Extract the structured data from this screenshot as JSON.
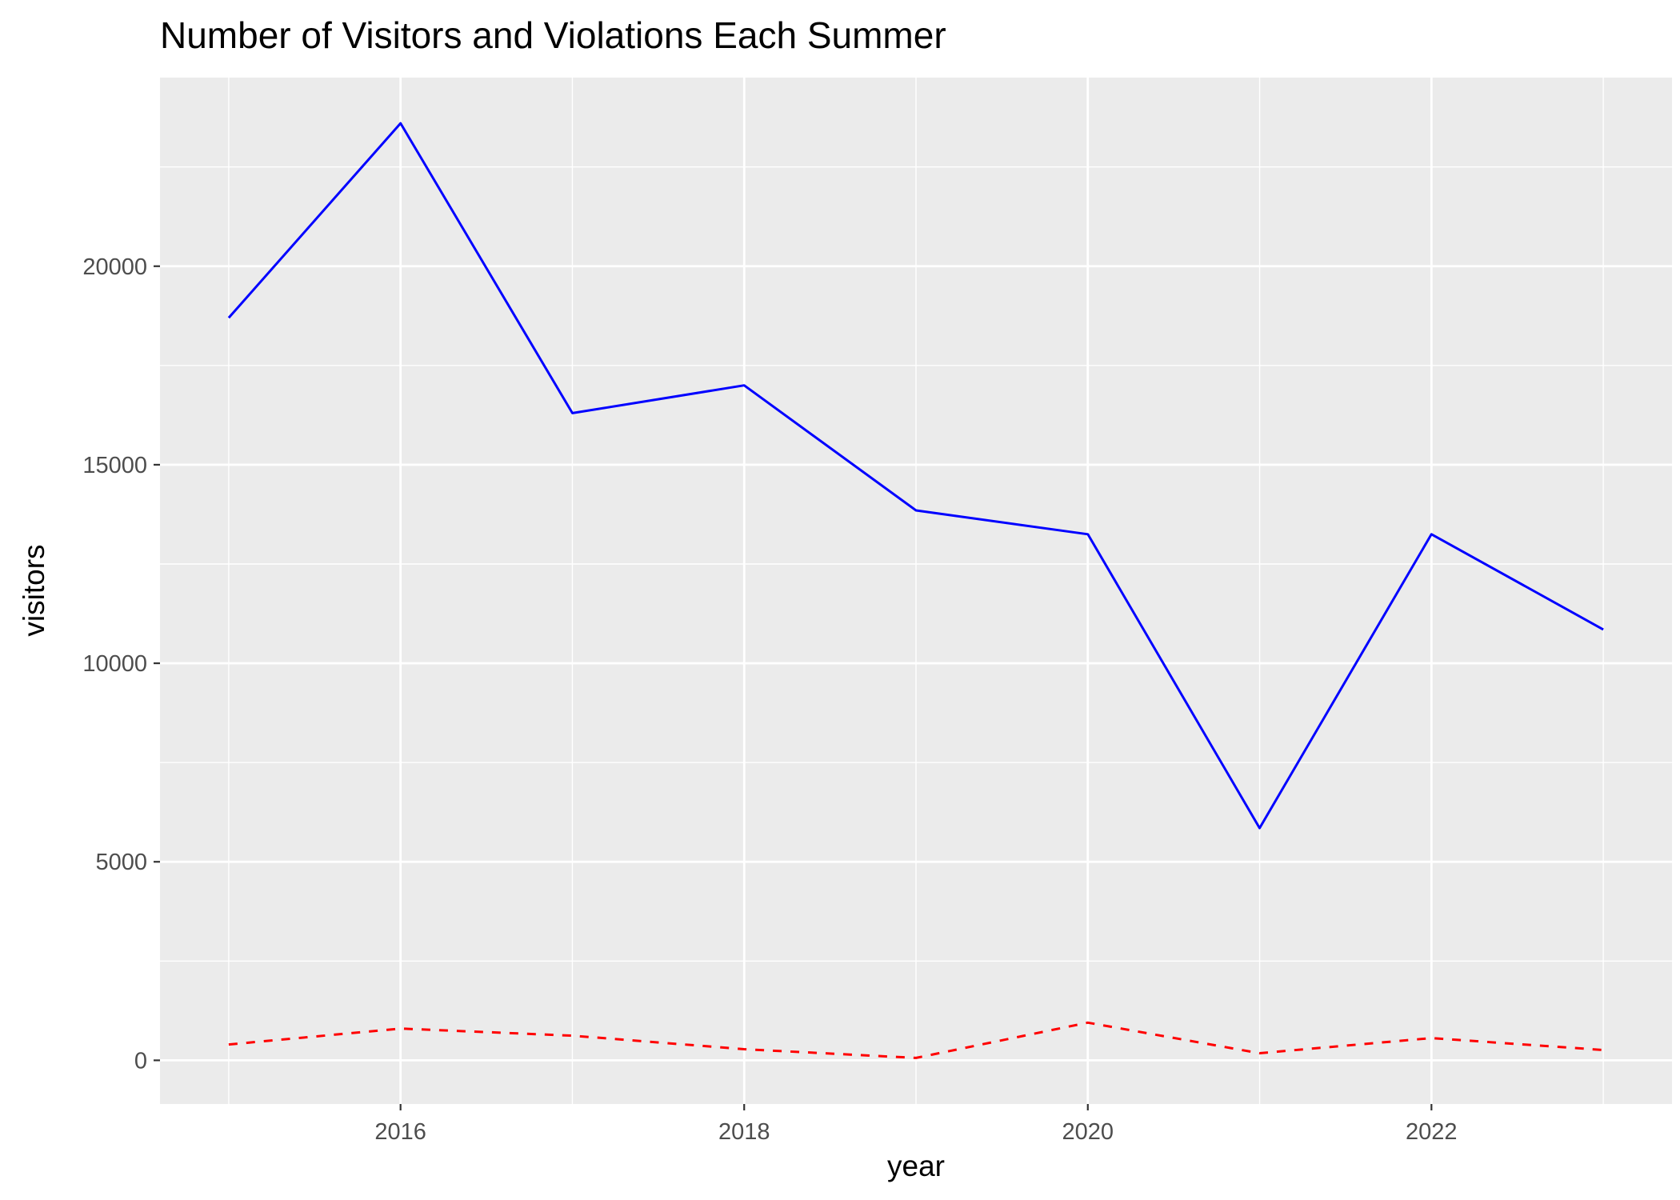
{
  "chart_data": {
    "type": "line",
    "title": "Number of Visitors and Violations Each Summer",
    "xlabel": "year",
    "ylabel": "visitors",
    "x": [
      2015,
      2016,
      2017,
      2018,
      2019,
      2020,
      2021,
      2022,
      2023
    ],
    "xlim": [
      2014.6,
      2023.4
    ],
    "ylim": [
      -1100,
      24750
    ],
    "x_ticks": [
      2016,
      2018,
      2020,
      2022
    ],
    "x_tick_labels": [
      "2016",
      "2018",
      "2020",
      "2022"
    ],
    "y_ticks": [
      0,
      5000,
      10000,
      15000,
      20000
    ],
    "y_tick_labels": [
      "0",
      "5000",
      "10000",
      "15000",
      "20000"
    ],
    "grid": true,
    "legend": "none",
    "background": "#ebebeb",
    "series": [
      {
        "key": "visitors",
        "color": "#0000ff",
        "line_style": "solid",
        "values": [
          18700,
          23600,
          16300,
          17000,
          13850,
          13250,
          5850,
          13250,
          10850
        ]
      },
      {
        "key": "violations",
        "color": "#ff0000",
        "line_style": "dashed",
        "values": [
          400,
          800,
          620,
          280,
          60,
          950,
          180,
          560,
          260
        ]
      }
    ]
  }
}
